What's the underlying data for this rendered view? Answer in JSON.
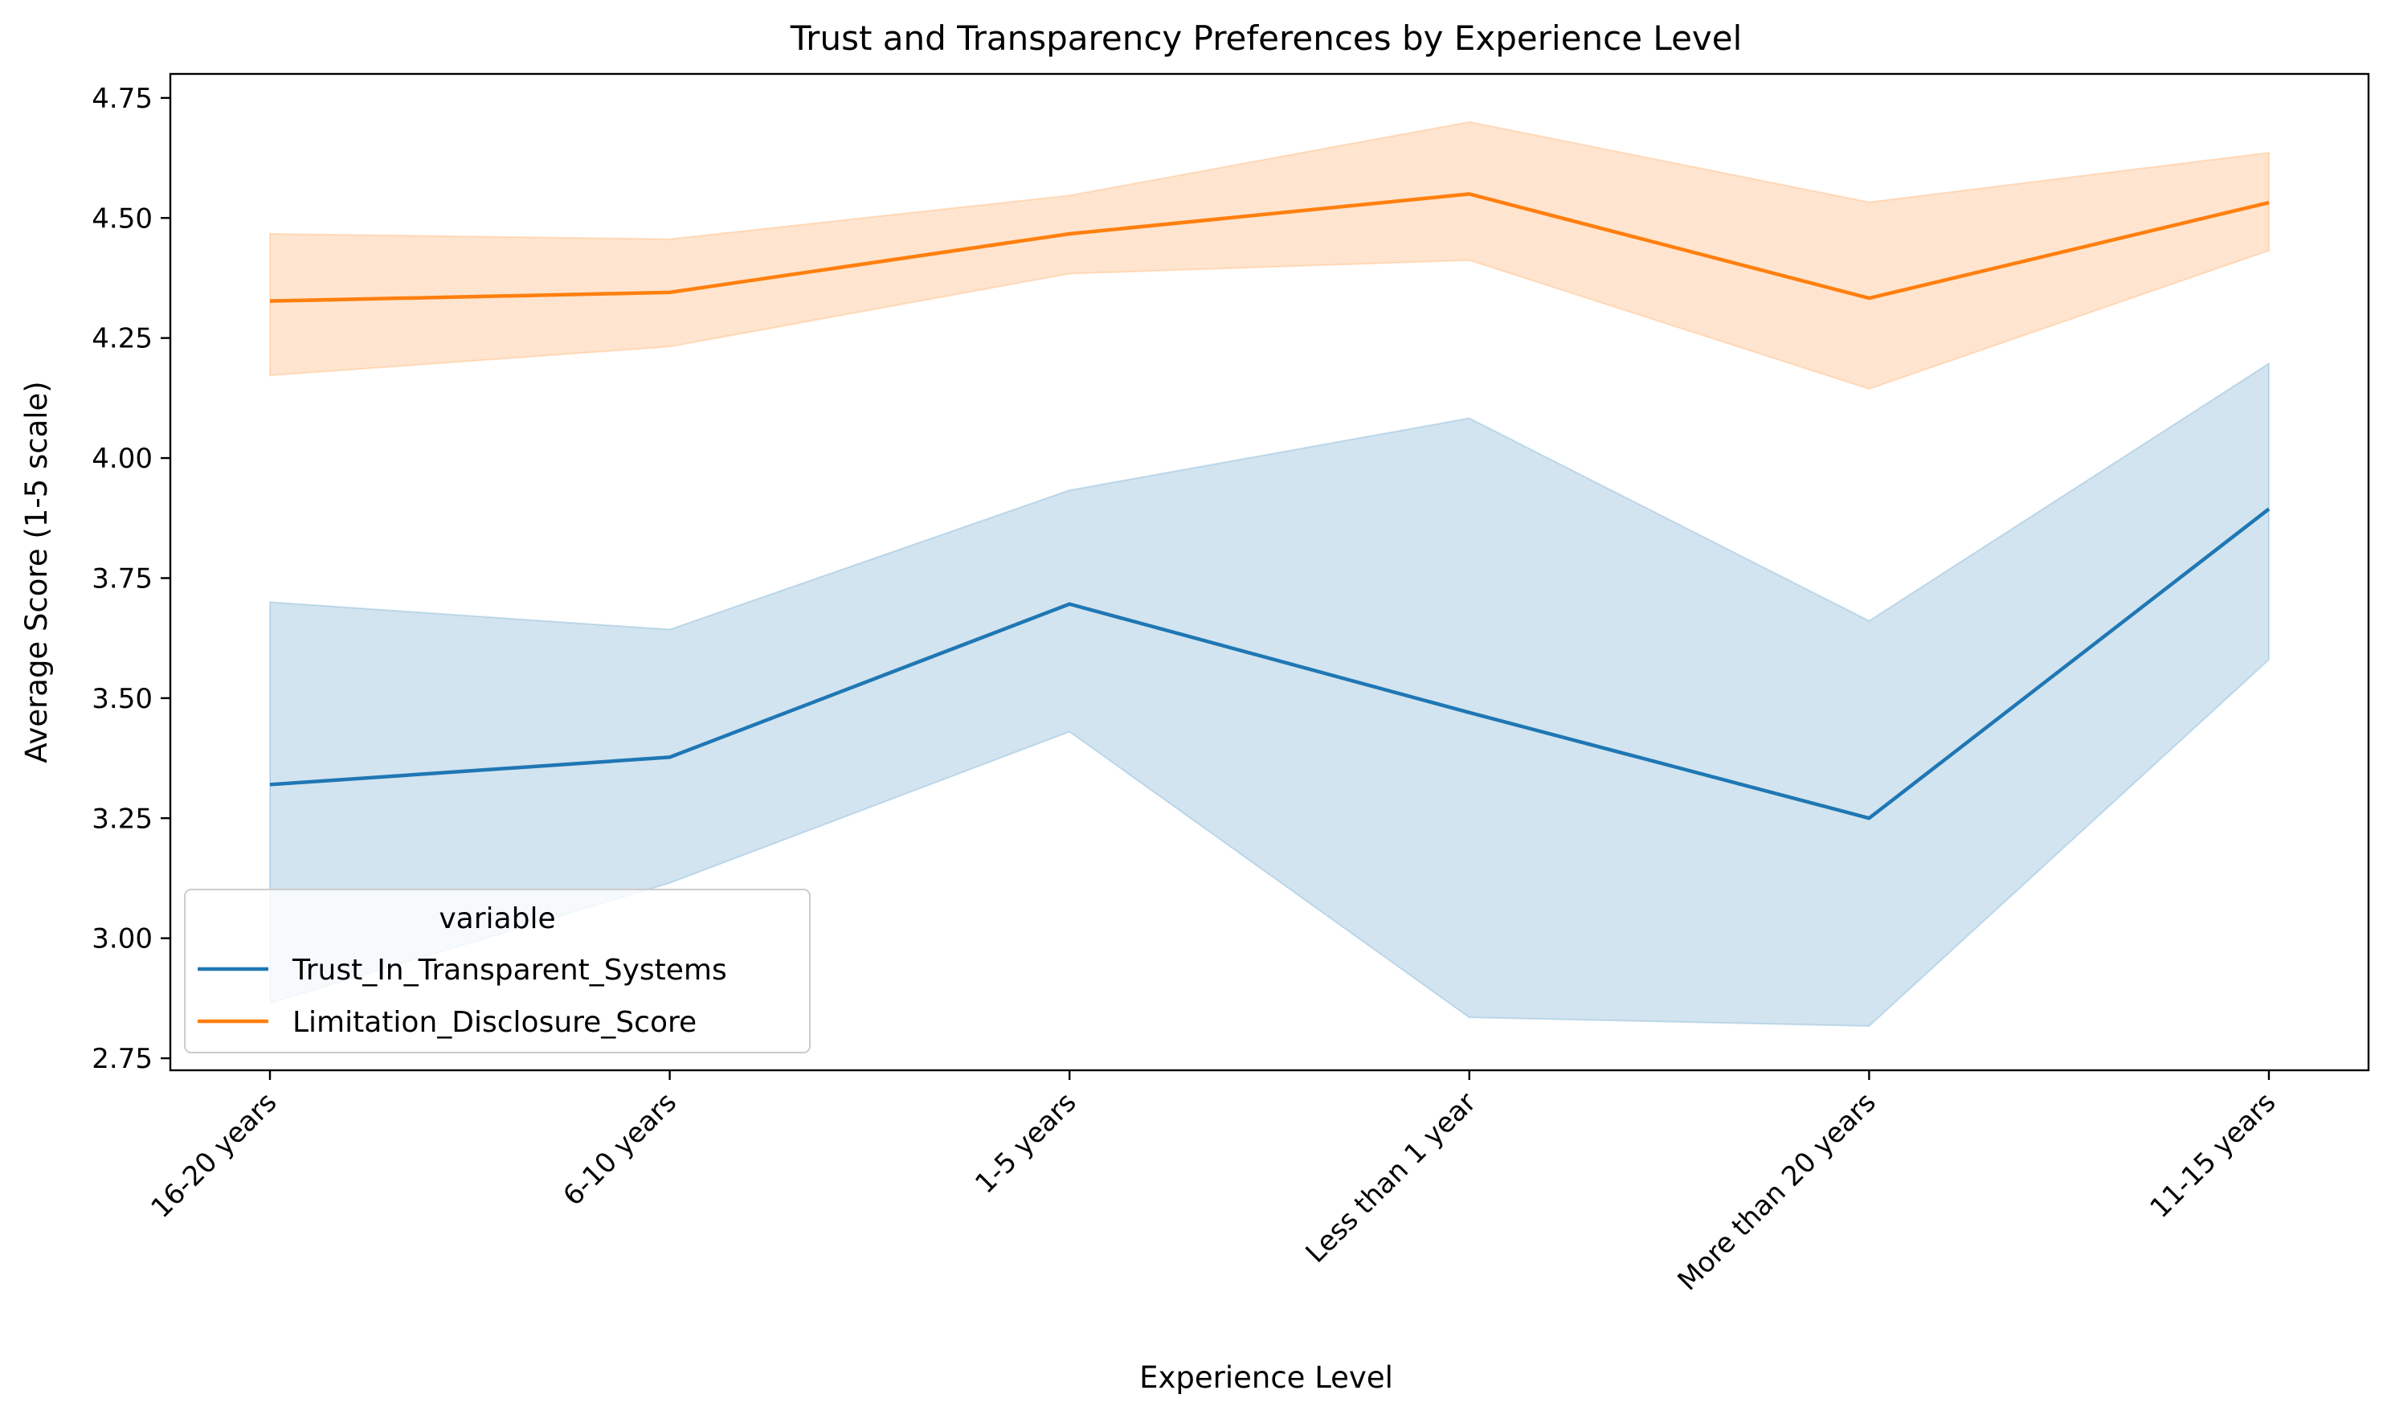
{
  "chart_data": {
    "type": "line",
    "title": "Trust and Transparency Preferences by Experience Level",
    "xlabel": "Experience Level",
    "ylabel": "Average Score (1-5 scale)",
    "categories": [
      "16-20 years",
      "6-10 years",
      "1-5 years",
      "Less than 1 year",
      "More than 20 years",
      "11-15 years"
    ],
    "ylim": [
      2.725,
      4.8
    ],
    "yticks": [
      "2.75",
      "3.00",
      "3.25",
      "3.50",
      "3.75",
      "4.00",
      "4.25",
      "4.50",
      "4.75"
    ],
    "grid": false,
    "legend": {
      "title": "variable",
      "placement": "lower-left"
    },
    "series": [
      {
        "name": "Trust_In_Transparent_Systems",
        "color": "#1f77b4",
        "values": [
          3.32,
          3.377,
          3.696,
          3.47,
          3.25,
          3.894
        ],
        "ci_lower": [
          2.865,
          3.115,
          3.43,
          2.835,
          2.817,
          3.58
        ],
        "ci_upper": [
          3.7,
          3.643,
          3.933,
          4.083,
          3.661,
          4.197
        ]
      },
      {
        "name": "Limitation_Disclosure_Score",
        "color": "#ff7f0e",
        "values": [
          4.327,
          4.345,
          4.467,
          4.55,
          4.333,
          4.532
        ],
        "ci_lower": [
          4.172,
          4.232,
          4.384,
          4.412,
          4.144,
          4.432
        ],
        "ci_upper": [
          4.467,
          4.456,
          4.547,
          4.7,
          4.533,
          4.636
        ]
      }
    ]
  }
}
